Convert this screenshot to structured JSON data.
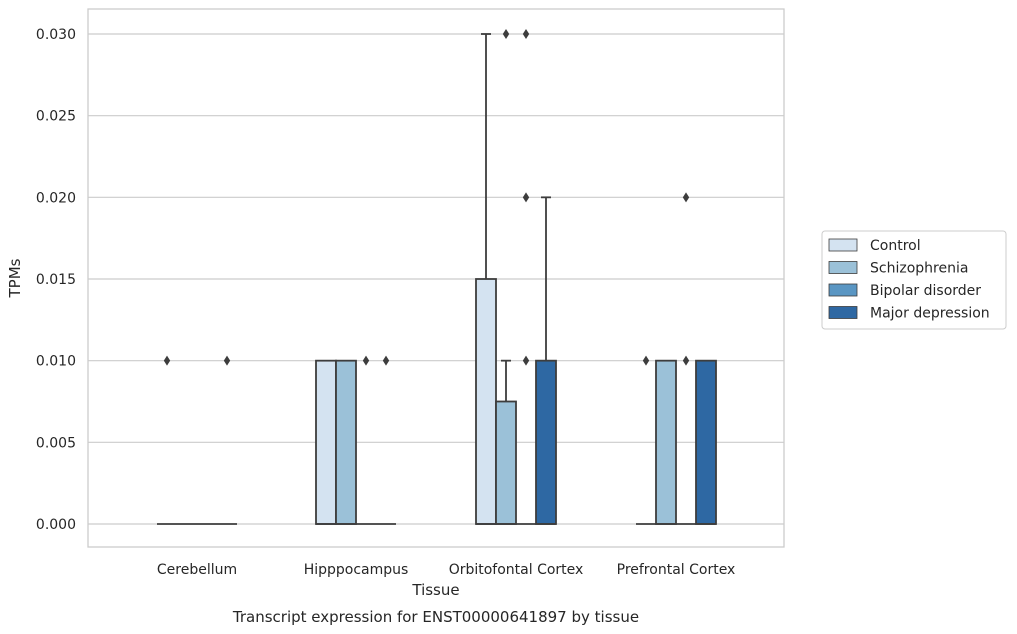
{
  "chart_data": {
    "type": "box",
    "caption": "Transcript expression for ENST00000641897 by tissue",
    "xlabel": "Tissue",
    "ylabel": "TPMs",
    "ylim": [
      -0.0015,
      0.0315
    ],
    "yticks": [
      0.0,
      0.005,
      0.01,
      0.015,
      0.02,
      0.025,
      0.03
    ],
    "ytick_labels": [
      "0.000",
      "0.005",
      "0.010",
      "0.015",
      "0.020",
      "0.025",
      "0.030"
    ],
    "grid": "horizontal",
    "legend_position": "right",
    "categories": [
      "Cerebellum",
      "Hipppocampus",
      "Orbitofontal Cortex",
      "Prefrontal Cortex"
    ],
    "series": [
      {
        "name": "Control",
        "color": "#d4e3f1",
        "boxes": [
          {
            "q1": 0.0,
            "median": 0.0,
            "q3": 0.0,
            "whislo": 0.0,
            "whishi": 0.0,
            "fliers": [
              0.01
            ]
          },
          {
            "q1": 0.0,
            "median": 0.0,
            "q3": 0.01,
            "whislo": 0.0,
            "whishi": 0.01,
            "fliers": []
          },
          {
            "q1": 0.0,
            "median": 0.0,
            "q3": 0.015,
            "whislo": 0.0,
            "whishi": 0.03,
            "fliers": []
          },
          {
            "q1": 0.0,
            "median": 0.0,
            "q3": 0.0,
            "whislo": 0.0,
            "whishi": 0.0,
            "fliers": [
              0.01
            ]
          }
        ]
      },
      {
        "name": "Schizophrenia",
        "color": "#9bc1d8",
        "boxes": [
          {
            "q1": 0.0,
            "median": 0.0,
            "q3": 0.0,
            "whislo": 0.0,
            "whishi": 0.0,
            "fliers": []
          },
          {
            "q1": 0.0,
            "median": 0.0,
            "q3": 0.01,
            "whislo": 0.0,
            "whishi": 0.01,
            "fliers": []
          },
          {
            "q1": 0.0,
            "median": 0.0,
            "q3": 0.0075,
            "whislo": 0.0,
            "whishi": 0.01,
            "fliers": [
              0.03
            ]
          },
          {
            "q1": 0.0,
            "median": 0.0,
            "q3": 0.01,
            "whislo": 0.0,
            "whishi": 0.01,
            "fliers": []
          }
        ]
      },
      {
        "name": "Bipolar disorder",
        "color": "#5a96c3",
        "boxes": [
          {
            "q1": 0.0,
            "median": 0.0,
            "q3": 0.0,
            "whislo": 0.0,
            "whishi": 0.0,
            "fliers": []
          },
          {
            "q1": 0.0,
            "median": 0.0,
            "q3": 0.0,
            "whislo": 0.0,
            "whishi": 0.0,
            "fliers": [
              0.01
            ]
          },
          {
            "q1": 0.0,
            "median": 0.0,
            "q3": 0.0,
            "whislo": 0.0,
            "whishi": 0.0,
            "fliers": [
              0.01,
              0.02,
              0.03
            ]
          },
          {
            "q1": 0.0,
            "median": 0.0,
            "q3": 0.0,
            "whislo": 0.0,
            "whishi": 0.0,
            "fliers": [
              0.01,
              0.02
            ]
          }
        ]
      },
      {
        "name": "Major depression",
        "color": "#2e68a3",
        "boxes": [
          {
            "q1": 0.0,
            "median": 0.0,
            "q3": 0.0,
            "whislo": 0.0,
            "whishi": 0.0,
            "fliers": [
              0.01
            ]
          },
          {
            "q1": 0.0,
            "median": 0.0,
            "q3": 0.0,
            "whislo": 0.0,
            "whishi": 0.0,
            "fliers": [
              0.01
            ]
          },
          {
            "q1": 0.0,
            "median": 0.0,
            "q3": 0.01,
            "whislo": 0.0,
            "whishi": 0.02,
            "fliers": []
          },
          {
            "q1": 0.0,
            "median": 0.0,
            "q3": 0.01,
            "whislo": 0.0,
            "whishi": 0.01,
            "fliers": []
          }
        ]
      }
    ]
  }
}
